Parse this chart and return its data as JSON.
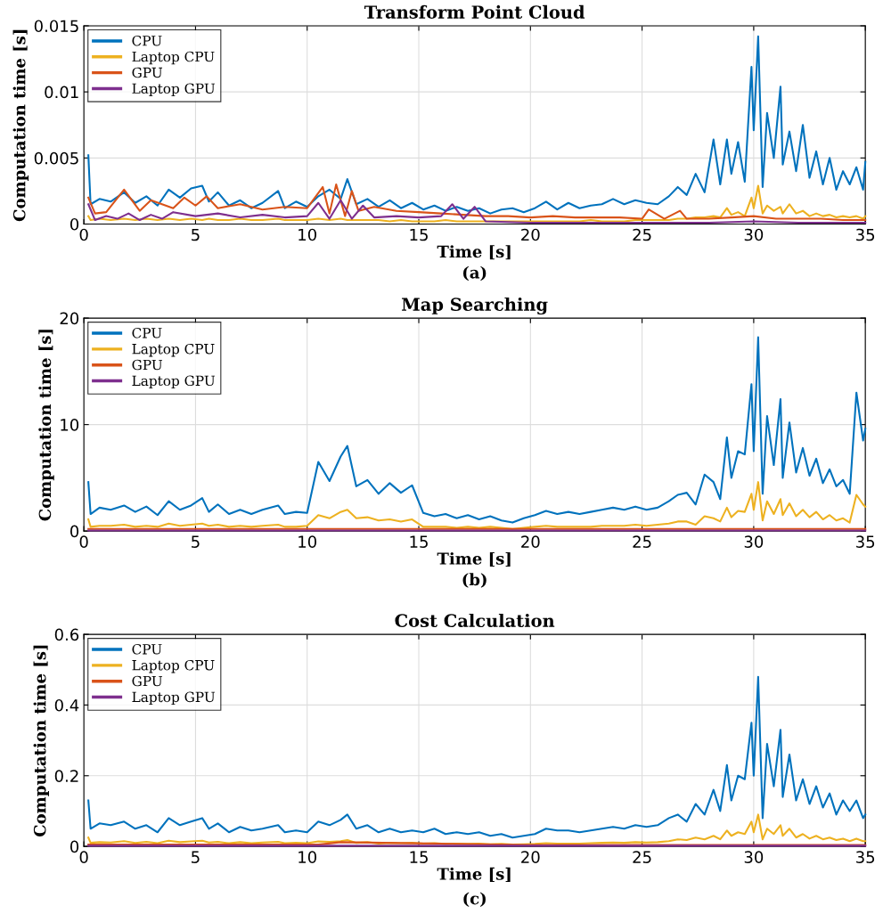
{
  "chart_data": [
    {
      "type": "line",
      "title": "Transform Point Cloud",
      "xlabel": "Time [s]",
      "ylabel": "Computation time [s]",
      "annotations": [
        "(a)"
      ],
      "x": [
        0.2,
        0.3,
        0.7,
        1.2,
        1.8,
        2.3,
        2.8,
        3.3,
        3.8,
        4.3,
        4.8,
        5.3,
        5.6,
        6.0,
        6.5,
        7.0,
        7.5,
        8.0,
        8.7,
        9.0,
        9.5,
        10.0,
        10.5,
        11.0,
        11.5,
        11.8,
        12.2,
        12.7,
        13.2,
        13.7,
        14.2,
        14.7,
        15.2,
        15.7,
        16.2,
        16.7,
        17.2,
        17.7,
        18.2,
        18.7,
        19.2,
        19.7,
        20.2,
        20.7,
        21.2,
        21.7,
        22.2,
        22.7,
        23.2,
        23.7,
        24.2,
        24.7,
        25.2,
        25.7,
        26.2,
        26.6,
        27.0,
        27.4,
        27.8,
        28.2,
        28.5,
        28.8,
        29.0,
        29.3,
        29.6,
        29.9,
        30.0,
        30.2,
        30.4,
        30.6,
        30.9,
        31.2,
        31.3,
        31.6,
        31.9,
        32.2,
        32.5,
        32.8,
        33.1,
        33.4,
        33.7,
        34.0,
        34.3,
        34.6,
        34.9,
        35.0
      ],
      "xlim": [
        0,
        35
      ],
      "xticks": [
        0,
        5,
        10,
        15,
        20,
        25,
        30,
        35
      ],
      "ylim": [
        0,
        0.015
      ],
      "yticks": [
        0,
        0.005,
        0.01,
        0.015
      ],
      "grid": true,
      "legend": "top left",
      "series": [
        {
          "name": "CPU",
          "color": "#0072bd",
          "values": [
            0.0052,
            0.0015,
            0.0019,
            0.0017,
            0.0024,
            0.0016,
            0.0021,
            0.0014,
            0.0026,
            0.002,
            0.0027,
            0.0029,
            0.0017,
            0.0024,
            0.0014,
            0.0018,
            0.0012,
            0.0016,
            0.0025,
            0.0012,
            0.0017,
            0.0013,
            0.0021,
            0.0026,
            0.0019,
            0.0034,
            0.0015,
            0.0019,
            0.0013,
            0.0018,
            0.0012,
            0.0016,
            0.0011,
            0.0014,
            0.001,
            0.0013,
            0.001,
            0.0012,
            0.0008,
            0.0011,
            0.0012,
            0.0009,
            0.0012,
            0.0017,
            0.0011,
            0.0016,
            0.0012,
            0.0014,
            0.0015,
            0.0019,
            0.0015,
            0.0018,
            0.0016,
            0.0015,
            0.0021,
            0.0028,
            0.0022,
            0.0038,
            0.0024,
            0.0064,
            0.003,
            0.0064,
            0.0038,
            0.0062,
            0.0032,
            0.0119,
            0.0071,
            0.0142,
            0.0028,
            0.0084,
            0.005,
            0.0104,
            0.0045,
            0.007,
            0.004,
            0.0075,
            0.0035,
            0.0055,
            0.003,
            0.005,
            0.0026,
            0.004,
            0.003,
            0.0043,
            0.0026,
            0.0047
          ]
        },
        {
          "name": "Laptop CPU",
          "color": "#edb120",
          "values": [
            0.0006,
            0.0003,
            0.0004,
            0.0003,
            0.0004,
            0.0003,
            0.0004,
            0.0003,
            0.0004,
            0.0003,
            0.0004,
            0.0003,
            0.0004,
            0.0003,
            0.0003,
            0.0004,
            0.0003,
            0.0003,
            0.0004,
            0.0003,
            0.0003,
            0.0003,
            0.0004,
            0.0003,
            0.0004,
            0.0003,
            0.0003,
            0.0003,
            0.0003,
            0.0002,
            0.0003,
            0.0002,
            0.0002,
            0.0002,
            0.0003,
            0.0002,
            0.0002,
            0.0002,
            0.0002,
            0.0002,
            0.0002,
            0.0002,
            0.0002,
            0.0002,
            0.0002,
            0.0002,
            0.0002,
            0.0003,
            0.0002,
            0.0002,
            0.0002,
            0.0003,
            0.0003,
            0.0003,
            0.0003,
            0.0004,
            0.0004,
            0.0005,
            0.0005,
            0.0006,
            0.0005,
            0.0012,
            0.0007,
            0.0009,
            0.0006,
            0.002,
            0.0012,
            0.0029,
            0.0008,
            0.0014,
            0.001,
            0.0013,
            0.0008,
            0.0015,
            0.0008,
            0.001,
            0.0006,
            0.0008,
            0.0006,
            0.0007,
            0.0005,
            0.0006,
            0.0005,
            0.0006,
            0.0004,
            0.0006
          ]
        },
        {
          "name": "GPU",
          "color": "#d95319",
          "x": [
            0.2,
            0.5,
            1,
            1.8,
            2.5,
            3,
            4,
            4.5,
            5,
            5.5,
            6,
            7,
            8,
            9,
            10,
            10.7,
            11,
            11.3,
            11.7,
            12,
            12.3,
            13,
            14,
            15,
            16,
            17,
            18,
            19,
            20,
            21,
            22,
            23,
            24,
            25,
            25.3,
            26,
            26.7,
            27,
            28,
            29,
            30,
            31,
            32,
            33,
            34,
            35
          ],
          "values": [
            0.002,
            0.0008,
            0.0009,
            0.0026,
            0.001,
            0.0018,
            0.0012,
            0.002,
            0.0014,
            0.0021,
            0.0012,
            0.0015,
            0.0011,
            0.0013,
            0.0012,
            0.0028,
            0.0008,
            0.003,
            0.0006,
            0.0025,
            0.001,
            0.0013,
            0.001,
            0.0009,
            0.0008,
            0.0007,
            0.0006,
            0.0006,
            0.0005,
            0.0006,
            0.0005,
            0.0005,
            0.0005,
            0.0004,
            0.0011,
            0.0004,
            0.001,
            0.0004,
            0.0004,
            0.0005,
            0.0006,
            0.0004,
            0.0004,
            0.0004,
            0.0003,
            0.0003
          ]
        },
        {
          "name": "Laptop GPU",
          "color": "#7e2f8e",
          "x": [
            0.2,
            0.5,
            1,
            1.5,
            2,
            2.5,
            3,
            3.5,
            4,
            5,
            6,
            7,
            8,
            9,
            10,
            10.5,
            11,
            11.5,
            12,
            12.5,
            13,
            14,
            15,
            16,
            16.5,
            17,
            17.5,
            18,
            20,
            22,
            24,
            26,
            28,
            30,
            32,
            34,
            35
          ],
          "values": [
            0.0015,
            0.0003,
            0.0006,
            0.0004,
            0.0008,
            0.0003,
            0.0007,
            0.0004,
            0.0009,
            0.0006,
            0.0008,
            0.0005,
            0.0007,
            0.0005,
            0.0006,
            0.0016,
            0.0004,
            0.0018,
            0.0004,
            0.0014,
            0.0005,
            0.0006,
            0.0005,
            0.0006,
            0.0015,
            0.0004,
            0.0013,
            0.0002,
            0.0001,
            0.0001,
            0.0001,
            0.0001,
            0.0001,
            0.0002,
            0.0001,
            0.0001,
            0.0001
          ]
        }
      ]
    },
    {
      "type": "line",
      "title": "Map Searching",
      "xlabel": "Time [s]",
      "ylabel": "Computation time [s]",
      "annotations": [
        "(b)"
      ],
      "x": [
        0.2,
        0.3,
        0.7,
        1.2,
        1.8,
        2.3,
        2.8,
        3.3,
        3.8,
        4.3,
        4.8,
        5.3,
        5.6,
        6.0,
        6.5,
        7.0,
        7.5,
        8.0,
        8.7,
        9.0,
        9.5,
        10.0,
        10.5,
        11.0,
        11.5,
        11.8,
        12.2,
        12.7,
        13.2,
        13.7,
        14.2,
        14.7,
        15.2,
        15.7,
        16.2,
        16.7,
        17.2,
        17.7,
        18.2,
        18.7,
        19.2,
        19.7,
        20.2,
        20.7,
        21.2,
        21.7,
        22.2,
        22.7,
        23.2,
        23.7,
        24.2,
        24.7,
        25.2,
        25.7,
        26.2,
        26.6,
        27.0,
        27.4,
        27.8,
        28.2,
        28.5,
        28.8,
        29.0,
        29.3,
        29.6,
        29.9,
        30.0,
        30.2,
        30.4,
        30.6,
        30.9,
        31.2,
        31.3,
        31.6,
        31.9,
        32.2,
        32.5,
        32.8,
        33.1,
        33.4,
        33.7,
        34.0,
        34.3,
        34.6,
        34.9,
        35.0
      ],
      "xlim": [
        0,
        35
      ],
      "xticks": [
        0,
        5,
        10,
        15,
        20,
        25,
        30,
        35
      ],
      "ylim": [
        0,
        20
      ],
      "yticks": [
        0,
        10,
        20
      ],
      "grid": true,
      "legend": "top left",
      "series": [
        {
          "name": "CPU",
          "color": "#0072bd",
          "values": [
            4.6,
            1.6,
            2.2,
            2.0,
            2.4,
            1.8,
            2.3,
            1.5,
            2.8,
            2.0,
            2.4,
            3.1,
            1.8,
            2.5,
            1.6,
            2.0,
            1.6,
            2.0,
            2.4,
            1.6,
            1.8,
            1.7,
            6.5,
            4.7,
            7.0,
            8.0,
            4.2,
            4.8,
            3.5,
            4.5,
            3.6,
            4.3,
            1.7,
            1.4,
            1.6,
            1.2,
            1.5,
            1.1,
            1.4,
            1.0,
            0.8,
            1.2,
            1.5,
            1.9,
            1.6,
            1.8,
            1.6,
            1.8,
            2.0,
            2.2,
            2.0,
            2.3,
            2.0,
            2.2,
            2.8,
            3.4,
            3.6,
            2.5,
            5.3,
            4.6,
            3.0,
            8.8,
            5.0,
            7.5,
            7.2,
            13.8,
            7.5,
            18.2,
            3.5,
            10.8,
            6.2,
            12.4,
            5.0,
            10.2,
            5.5,
            7.8,
            5.2,
            6.8,
            4.5,
            5.8,
            4.2,
            4.8,
            3.5,
            13.0,
            8.5,
            9.6
          ]
        },
        {
          "name": "Laptop CPU",
          "color": "#edb120",
          "values": [
            1.1,
            0.4,
            0.5,
            0.5,
            0.6,
            0.4,
            0.5,
            0.4,
            0.7,
            0.5,
            0.6,
            0.7,
            0.5,
            0.6,
            0.4,
            0.5,
            0.4,
            0.5,
            0.6,
            0.4,
            0.4,
            0.5,
            1.5,
            1.2,
            1.8,
            2.0,
            1.2,
            1.3,
            1.0,
            1.1,
            0.9,
            1.1,
            0.4,
            0.4,
            0.4,
            0.3,
            0.4,
            0.3,
            0.4,
            0.3,
            0.2,
            0.3,
            0.4,
            0.5,
            0.4,
            0.4,
            0.4,
            0.4,
            0.5,
            0.5,
            0.5,
            0.6,
            0.5,
            0.6,
            0.7,
            0.9,
            0.9,
            0.6,
            1.4,
            1.2,
            0.9,
            2.2,
            1.3,
            1.9,
            1.8,
            3.5,
            2.0,
            4.6,
            1.0,
            2.8,
            1.6,
            3.0,
            1.5,
            2.6,
            1.4,
            2.0,
            1.3,
            1.8,
            1.1,
            1.5,
            1.0,
            1.2,
            0.8,
            3.4,
            2.5,
            2.3
          ]
        },
        {
          "name": "GPU",
          "color": "#d95319",
          "x": [
            0.2,
            10,
            20,
            30,
            35
          ],
          "values": [
            0.2,
            0.2,
            0.2,
            0.2,
            0.2
          ]
        },
        {
          "name": "Laptop GPU",
          "color": "#7e2f8e",
          "x": [
            0.2,
            10,
            20,
            30,
            35
          ],
          "values": [
            0.05,
            0.05,
            0.05,
            0.05,
            0.05
          ]
        }
      ]
    },
    {
      "type": "line",
      "title": "Cost Calculation",
      "xlabel": "Time [s]",
      "ylabel": "Computation time [s]",
      "annotations": [
        "(c)"
      ],
      "x": [
        0.2,
        0.3,
        0.7,
        1.2,
        1.8,
        2.3,
        2.8,
        3.3,
        3.8,
        4.3,
        4.8,
        5.3,
        5.6,
        6.0,
        6.5,
        7.0,
        7.5,
        8.0,
        8.7,
        9.0,
        9.5,
        10.0,
        10.5,
        11.0,
        11.5,
        11.8,
        12.2,
        12.7,
        13.2,
        13.7,
        14.2,
        14.7,
        15.2,
        15.7,
        16.2,
        16.7,
        17.2,
        17.7,
        18.2,
        18.7,
        19.2,
        19.7,
        20.2,
        20.7,
        21.2,
        21.7,
        22.2,
        22.7,
        23.2,
        23.7,
        24.2,
        24.7,
        25.2,
        25.7,
        26.2,
        26.6,
        27.0,
        27.4,
        27.8,
        28.2,
        28.5,
        28.8,
        29.0,
        29.3,
        29.6,
        29.9,
        30.0,
        30.2,
        30.4,
        30.6,
        30.9,
        31.2,
        31.3,
        31.6,
        31.9,
        32.2,
        32.5,
        32.8,
        33.1,
        33.4,
        33.7,
        34.0,
        34.3,
        34.6,
        34.9,
        35.0
      ],
      "xlim": [
        0,
        35
      ],
      "xticks": [
        0,
        5,
        10,
        15,
        20,
        25,
        30,
        35
      ],
      "ylim": [
        0,
        0.6
      ],
      "yticks": [
        0,
        0.2,
        0.4,
        0.6
      ],
      "grid": true,
      "legend": "top left",
      "series": [
        {
          "name": "CPU",
          "color": "#0072bd",
          "values": [
            0.13,
            0.05,
            0.065,
            0.06,
            0.07,
            0.05,
            0.06,
            0.04,
            0.08,
            0.06,
            0.07,
            0.08,
            0.05,
            0.065,
            0.04,
            0.055,
            0.045,
            0.05,
            0.06,
            0.04,
            0.045,
            0.04,
            0.07,
            0.06,
            0.075,
            0.09,
            0.05,
            0.06,
            0.04,
            0.05,
            0.04,
            0.045,
            0.04,
            0.05,
            0.035,
            0.04,
            0.035,
            0.04,
            0.03,
            0.035,
            0.025,
            0.03,
            0.035,
            0.05,
            0.045,
            0.045,
            0.04,
            0.045,
            0.05,
            0.055,
            0.05,
            0.06,
            0.055,
            0.06,
            0.08,
            0.09,
            0.07,
            0.12,
            0.09,
            0.16,
            0.1,
            0.23,
            0.13,
            0.2,
            0.19,
            0.35,
            0.2,
            0.48,
            0.08,
            0.29,
            0.17,
            0.33,
            0.14,
            0.26,
            0.13,
            0.19,
            0.12,
            0.17,
            0.11,
            0.15,
            0.09,
            0.13,
            0.1,
            0.13,
            0.08,
            0.09
          ]
        },
        {
          "name": "Laptop CPU",
          "color": "#edb120",
          "values": [
            0.025,
            0.01,
            0.012,
            0.011,
            0.015,
            0.01,
            0.013,
            0.009,
            0.016,
            0.012,
            0.014,
            0.016,
            0.011,
            0.013,
            0.009,
            0.012,
            0.009,
            0.011,
            0.013,
            0.009,
            0.01,
            0.009,
            0.014,
            0.013,
            0.015,
            0.018,
            0.01,
            0.012,
            0.008,
            0.01,
            0.009,
            0.01,
            0.008,
            0.009,
            0.007,
            0.008,
            0.007,
            0.008,
            0.006,
            0.007,
            0.005,
            0.006,
            0.007,
            0.009,
            0.008,
            0.008,
            0.008,
            0.009,
            0.01,
            0.011,
            0.01,
            0.012,
            0.011,
            0.012,
            0.015,
            0.02,
            0.018,
            0.025,
            0.02,
            0.03,
            0.02,
            0.045,
            0.03,
            0.04,
            0.035,
            0.07,
            0.04,
            0.09,
            0.02,
            0.05,
            0.035,
            0.06,
            0.03,
            0.05,
            0.025,
            0.035,
            0.022,
            0.03,
            0.02,
            0.025,
            0.018,
            0.022,
            0.015,
            0.022,
            0.015,
            0.015
          ]
        },
        {
          "name": "GPU",
          "color": "#d95319",
          "x": [
            0.2,
            10.5,
            11.5,
            20,
            35
          ],
          "values": [
            0.005,
            0.005,
            0.012,
            0.004,
            0.004
          ]
        },
        {
          "name": "Laptop GPU",
          "color": "#7e2f8e",
          "x": [
            0.2,
            10,
            20,
            30,
            35
          ],
          "values": [
            0.002,
            0.002,
            0.002,
            0.002,
            0.002
          ]
        }
      ]
    }
  ]
}
